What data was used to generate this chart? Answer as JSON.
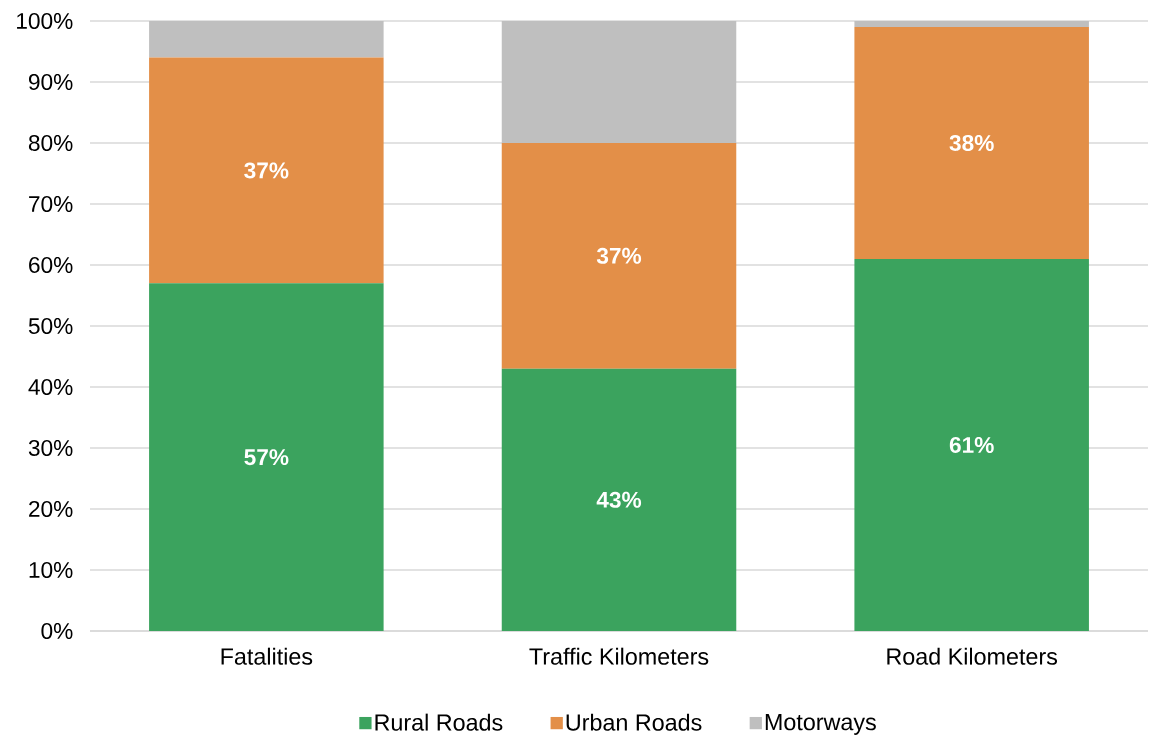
{
  "chart_data": {
    "type": "bar",
    "stacked": true,
    "categories": [
      "Fatalities",
      "Traffic Kilometers",
      "Road Kilometers"
    ],
    "series": [
      {
        "name": "Rural Roads",
        "color": "#3ba35e",
        "values": [
          57,
          43,
          61
        ],
        "value_labels": [
          "57%",
          "43%",
          "61%"
        ]
      },
      {
        "name": "Urban Roads",
        "color": "#e38f48",
        "values": [
          37,
          37,
          38
        ],
        "value_labels": [
          "37%",
          "37%",
          "38%"
        ]
      },
      {
        "name": "Motorways",
        "color": "#bfbfbf",
        "values": [
          6,
          20,
          1
        ]
      }
    ],
    "ylim": [
      0,
      100
    ],
    "yticks": [
      {
        "value": 0,
        "label": "0%"
      },
      {
        "value": 10,
        "label": "10%"
      },
      {
        "value": 20,
        "label": "20%"
      },
      {
        "value": 30,
        "label": "30%"
      },
      {
        "value": 40,
        "label": "40%"
      },
      {
        "value": 50,
        "label": "50%"
      },
      {
        "value": 60,
        "label": "60%"
      },
      {
        "value": 70,
        "label": "70%"
      },
      {
        "value": 80,
        "label": "80%"
      },
      {
        "value": 90,
        "label": "90%"
      },
      {
        "value": 100,
        "label": "100%"
      }
    ],
    "grid": "y",
    "legend": "bottom"
  }
}
